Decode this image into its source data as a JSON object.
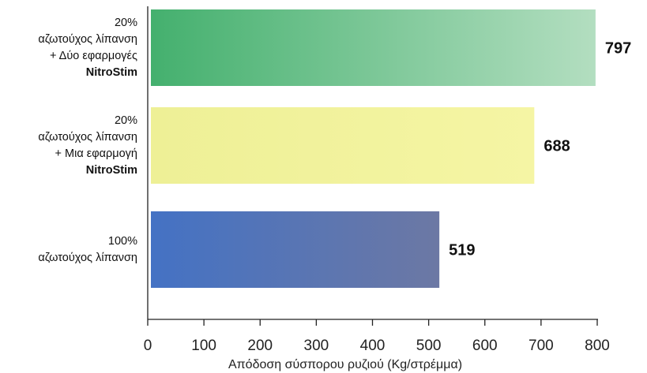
{
  "chart_data": {
    "type": "bar",
    "orientation": "horizontal",
    "categories": [
      {
        "lines": [
          "20%",
          "αζωτούχος λίπανση",
          "+ Δύο εφαρμογές"
        ],
        "bold_line": "NitroStim"
      },
      {
        "lines": [
          "20%",
          "αζωτούχος λίπανση",
          "+ Μια εφαρμογή"
        ],
        "bold_line": "NitroStim"
      },
      {
        "lines": [
          "100%",
          "αζωτούχος λίπανση"
        ],
        "bold_line": ""
      }
    ],
    "values": [
      797,
      688,
      519
    ],
    "value_labels": [
      "797",
      "688",
      "519"
    ],
    "xlabel": "Απόδοση σύσπορου ρυζιού (Kg/στρέμμα)",
    "xlim": [
      0,
      800
    ],
    "xticks": [
      "0",
      "100",
      "200",
      "300",
      "400",
      "500",
      "600",
      "700",
      "800"
    ],
    "grid": false,
    "colors": {
      "bar1": [
        "#44b06e",
        "#b3dec0"
      ],
      "bar2": [
        "#eef096",
        "#f5f5a4"
      ],
      "bar3": [
        "#4472c4",
        "#6c78a4"
      ]
    }
  }
}
